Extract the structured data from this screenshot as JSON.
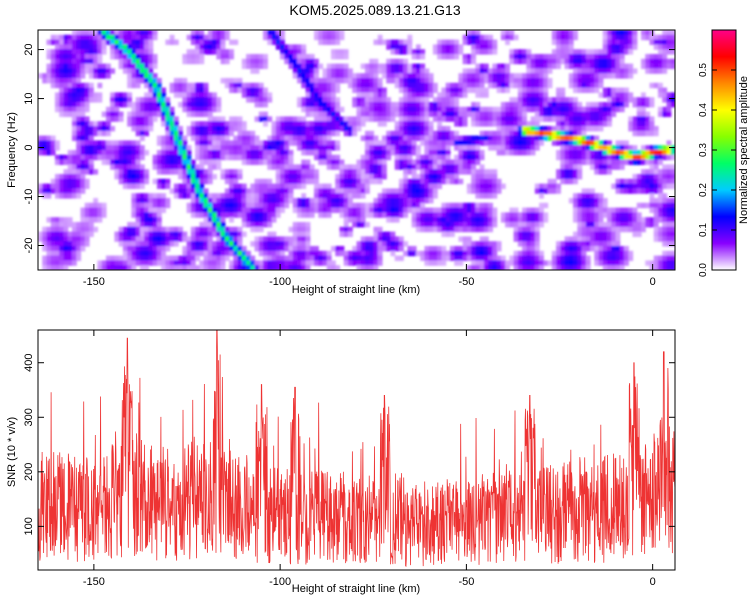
{
  "title": "KOM5.2025.089.13.21.G13",
  "chart_data": [
    {
      "type": "heatmap",
      "xlabel": "Height of straight line (km)",
      "ylabel": "Frequency (Hz)",
      "xlim": [
        -165,
        6
      ],
      "ylim": [
        -25,
        24
      ],
      "x_ticks": [
        -150,
        -100,
        -50,
        0
      ],
      "y_ticks": [
        -20,
        -10,
        0,
        10,
        20
      ],
      "colorbar": {
        "label": "Normalized spectral amplitude",
        "range": [
          0,
          0.6
        ],
        "ticks": [
          0.0,
          0.1,
          0.2,
          0.3,
          0.4,
          0.5
        ],
        "colors": [
          "#ffffff",
          "#8800ff",
          "#0000ff",
          "#00ccff",
          "#00ff66",
          "#88ff00",
          "#ffff00",
          "#ff8800",
          "#ff0000",
          "#ff0088"
        ]
      },
      "ridges": [
        {
          "points": [
            [
              -141,
              20
            ],
            [
              -148,
              24
            ],
            [
              -134,
              13
            ],
            [
              -128,
              2
            ],
            [
              -122,
              -9
            ],
            [
              -115,
              -18
            ],
            [
              -108,
              -24
            ]
          ],
          "peak": 0.3
        },
        {
          "points": [
            [
              -103,
              24
            ],
            [
              -97,
              18
            ],
            [
              -90,
              10
            ],
            [
              -82,
              4
            ]
          ],
          "peak": 0.15
        },
        {
          "points": [
            [
              -53,
              1.5
            ],
            [
              -45,
              2.5
            ]
          ],
          "peak": 0.15
        },
        {
          "points": [
            [
              -35,
              4
            ],
            [
              -20,
              2
            ],
            [
              -12,
              0
            ],
            [
              -5,
              -1.5
            ],
            [
              0,
              -0.5
            ],
            [
              4,
              0
            ]
          ],
          "peak": 0.55
        }
      ]
    },
    {
      "type": "line",
      "xlabel": "Height of straight line (km)",
      "ylabel": "SNR (10 * v/v)",
      "xlim": [
        -165,
        6
      ],
      "ylim": [
        20,
        460
      ],
      "x_ticks": [
        -150,
        -100,
        -50,
        0
      ],
      "y_ticks": [
        100,
        200,
        300,
        400
      ],
      "series": [
        {
          "color": "#ee3333",
          "baseline_x": [
            -165,
            -150,
            -140,
            -130,
            -120,
            -110,
            -100,
            -90,
            -80,
            -70,
            -60,
            -50,
            -40,
            -30,
            -20,
            -10,
            0,
            6
          ],
          "baseline_y": [
            140,
            130,
            160,
            140,
            150,
            130,
            120,
            120,
            115,
            110,
            105,
            110,
            115,
            120,
            130,
            135,
            150,
            160
          ],
          "peaks": [
            [
              -141,
              445
            ],
            [
              -117,
              460
            ],
            [
              -105,
              360
            ],
            [
              -96,
              355
            ],
            [
              -72,
              340
            ],
            [
              -33,
              340
            ],
            [
              -5,
              400
            ],
            [
              3,
              420
            ]
          ]
        }
      ]
    }
  ]
}
